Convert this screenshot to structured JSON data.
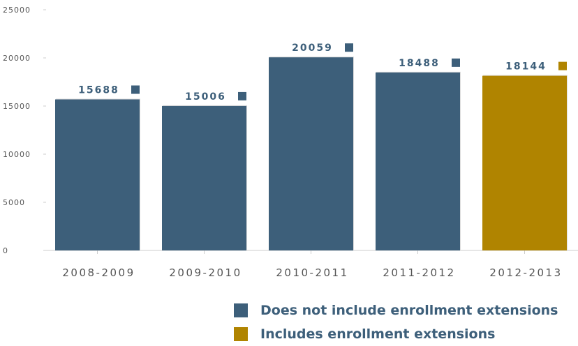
{
  "chart_data": {
    "type": "bar",
    "categories": [
      "2008-2009",
      "2009-2010",
      "2010-2011",
      "2011-2012",
      "2012-2013"
    ],
    "values": [
      15688,
      15006,
      20059,
      18488,
      18144
    ],
    "data_labels": [
      "15688",
      "15006",
      "20059",
      "18488",
      "18144"
    ],
    "bar_series": [
      0,
      0,
      0,
      0,
      1
    ],
    "ylim": [
      0,
      25000
    ],
    "yticks": [
      "0",
      "5000",
      "10000",
      "15000",
      "20000",
      "25000"
    ],
    "grid": false,
    "legend_position": "bottom-right",
    "series": [
      {
        "name": "Does not include enrollment extensions",
        "color": "#3d5f7a"
      },
      {
        "name": "Includes enrollment extensions",
        "color": "#b08400"
      }
    ]
  }
}
